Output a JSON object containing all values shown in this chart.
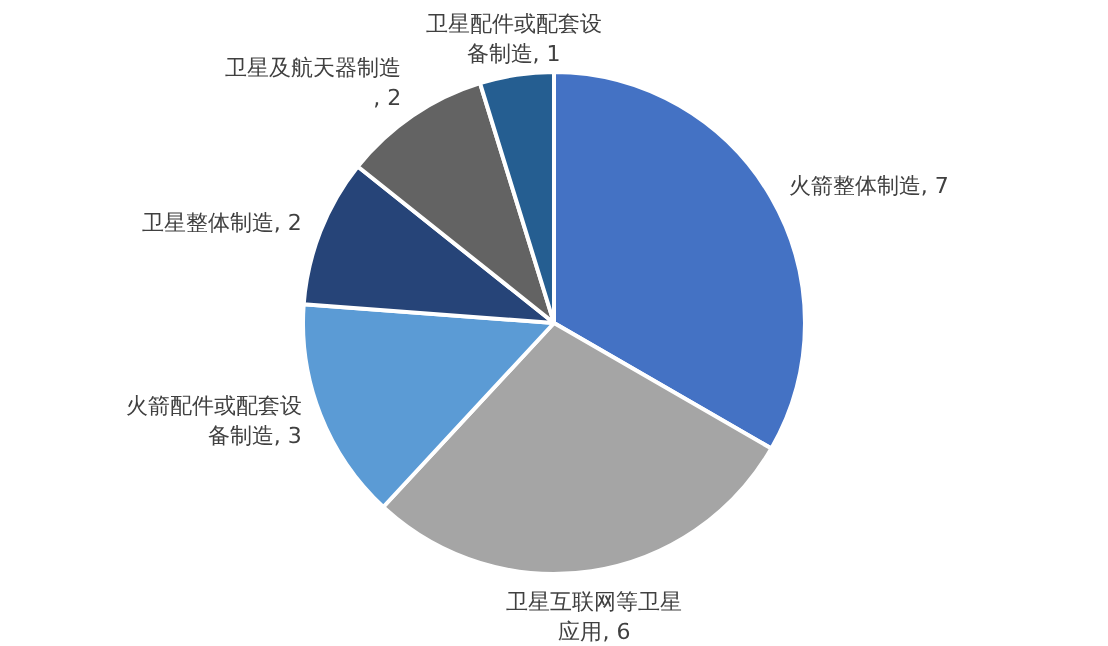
{
  "chart_data": {
    "type": "pie",
    "categories": [
      "火箭整体制造",
      "卫星互联网等卫星应用",
      "火箭配件或配套设备制造",
      "卫星整体制造",
      "卫星及航天器制造",
      "卫星配件或配套设备制造"
    ],
    "values": [
      7,
      6,
      3,
      2,
      2,
      1
    ],
    "value_labels": [
      ", 7",
      ", 6",
      ", 3",
      ", 2",
      ", 2",
      ", 1"
    ],
    "colors": [
      "#4472c4",
      "#a5a5a5",
      "#5b9bd5",
      "#264478",
      "#636363",
      "#255e91"
    ],
    "legend": false
  }
}
